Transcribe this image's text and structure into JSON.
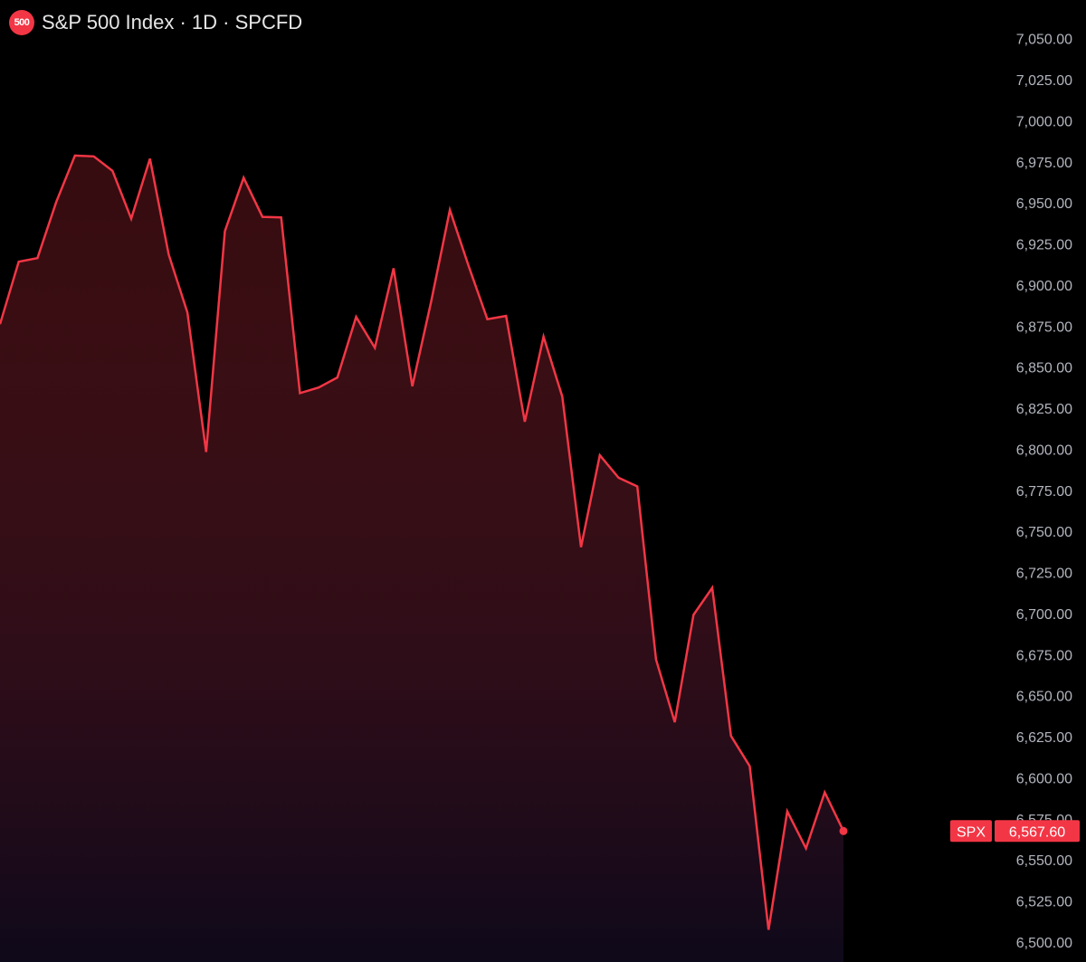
{
  "header": {
    "badge_text": "500",
    "title": "S&P 500 Index · 1D · SPCFD"
  },
  "colors": {
    "background": "#000000",
    "line": "#f23645",
    "area_top": "#f23645",
    "area_bottom": "#1a1030",
    "tick_text": "#b2b5be",
    "badge": "#f23645"
  },
  "price_tag": {
    "symbol": "SPX",
    "value": "6,567.60"
  },
  "chart_data": {
    "type": "area",
    "title": "S&P 500 Index · 1D · SPCFD",
    "xlabel": "",
    "ylabel": "",
    "grid": false,
    "ylim": [
      6500,
      7062.5
    ],
    "yticks": [
      7050,
      7025,
      7000,
      6975,
      6950,
      6925,
      6900,
      6875,
      6850,
      6825,
      6800,
      6775,
      6750,
      6725,
      6700,
      6675,
      6650,
      6625,
      6600,
      6575,
      6550,
      6525,
      6500
    ],
    "ytick_labels": [
      "7,050.00",
      "7,025.00",
      "7,000.00",
      "6,975.00",
      "6,950.00",
      "6,925.00",
      "6,900.00",
      "6,875.00",
      "6,850.00",
      "6,825.00",
      "6,800.00",
      "6,775.00",
      "6,750.00",
      "6,725.00",
      "6,700.00",
      "6,675.00",
      "6,650.00",
      "6,625.00",
      "6,600.00",
      "6,575.00",
      "6,550.00",
      "6,525.00",
      "6,500.00"
    ],
    "series": [
      {
        "values": [
          6876.2,
          6914.2,
          6916.4,
          6950.5,
          6978.8,
          6978.3,
          6969.5,
          6940.4,
          6976.9,
          6918.6,
          6883.2,
          6798.4,
          6932.8,
          6965.3,
          6941.5,
          6941.2,
          6834.2,
          6837.6,
          6843.7,
          6880.6,
          6861.8,
          6910.2,
          6838.4,
          6889.9,
          6945.7,
          6911.6,
          6879.2,
          6881.2,
          6816.8,
          6868.6,
          6832.1,
          6740.4,
          6796.4,
          6782.7,
          6777.4,
          6672.0,
          6633.9,
          6699.2,
          6715.7,
          6625.5,
          6607.1,
          6507.5,
          6579.6,
          6557.1,
          6591.1,
          6567.6
        ]
      }
    ],
    "last_value": 6567.6
  }
}
